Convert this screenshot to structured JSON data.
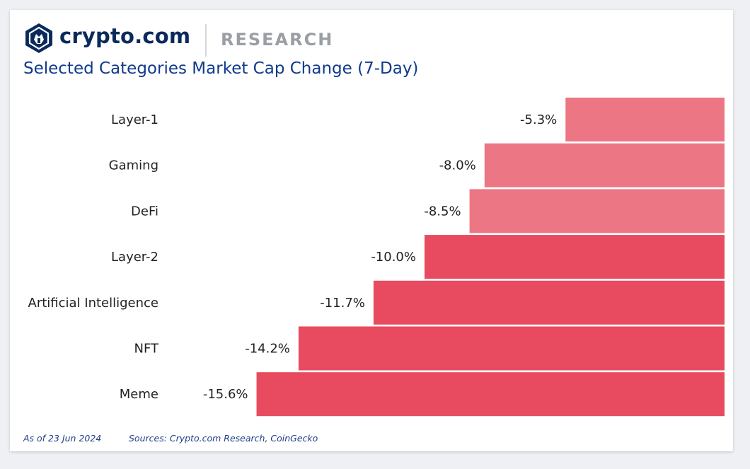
{
  "header": {
    "brand": "crypto.com",
    "section": "RESEARCH",
    "logo_icon": "crypto-com-lion-shield-icon"
  },
  "chart_data": {
    "type": "bar",
    "orientation": "horizontal",
    "title": "Selected Categories Market Cap Change (7-Day)",
    "xlabel": "",
    "ylabel": "",
    "categories": [
      "Layer-1",
      "Gaming",
      "DeFi",
      "Layer-2",
      "Artificial Intelligence",
      "NFT",
      "Meme"
    ],
    "values": [
      -5.3,
      -8.0,
      -8.5,
      -10.0,
      -11.7,
      -14.2,
      -15.6
    ],
    "data_labels": [
      "-5.3%",
      "-8.0%",
      "-8.5%",
      "-10.0%",
      "-11.7%",
      "-14.2%",
      "-15.6%"
    ],
    "colors": [
      "#ec7684",
      "#ec7684",
      "#ec7684",
      "#e84a5f",
      "#e84a5f",
      "#e84a5f",
      "#e84a5f"
    ],
    "xlim": [
      -18.5,
      0
    ],
    "grid": false,
    "legend": "none"
  },
  "footer": {
    "date_note": "As of 23 Jun 2024",
    "sources": "Sources: Crypto.com Research, CoinGecko"
  }
}
